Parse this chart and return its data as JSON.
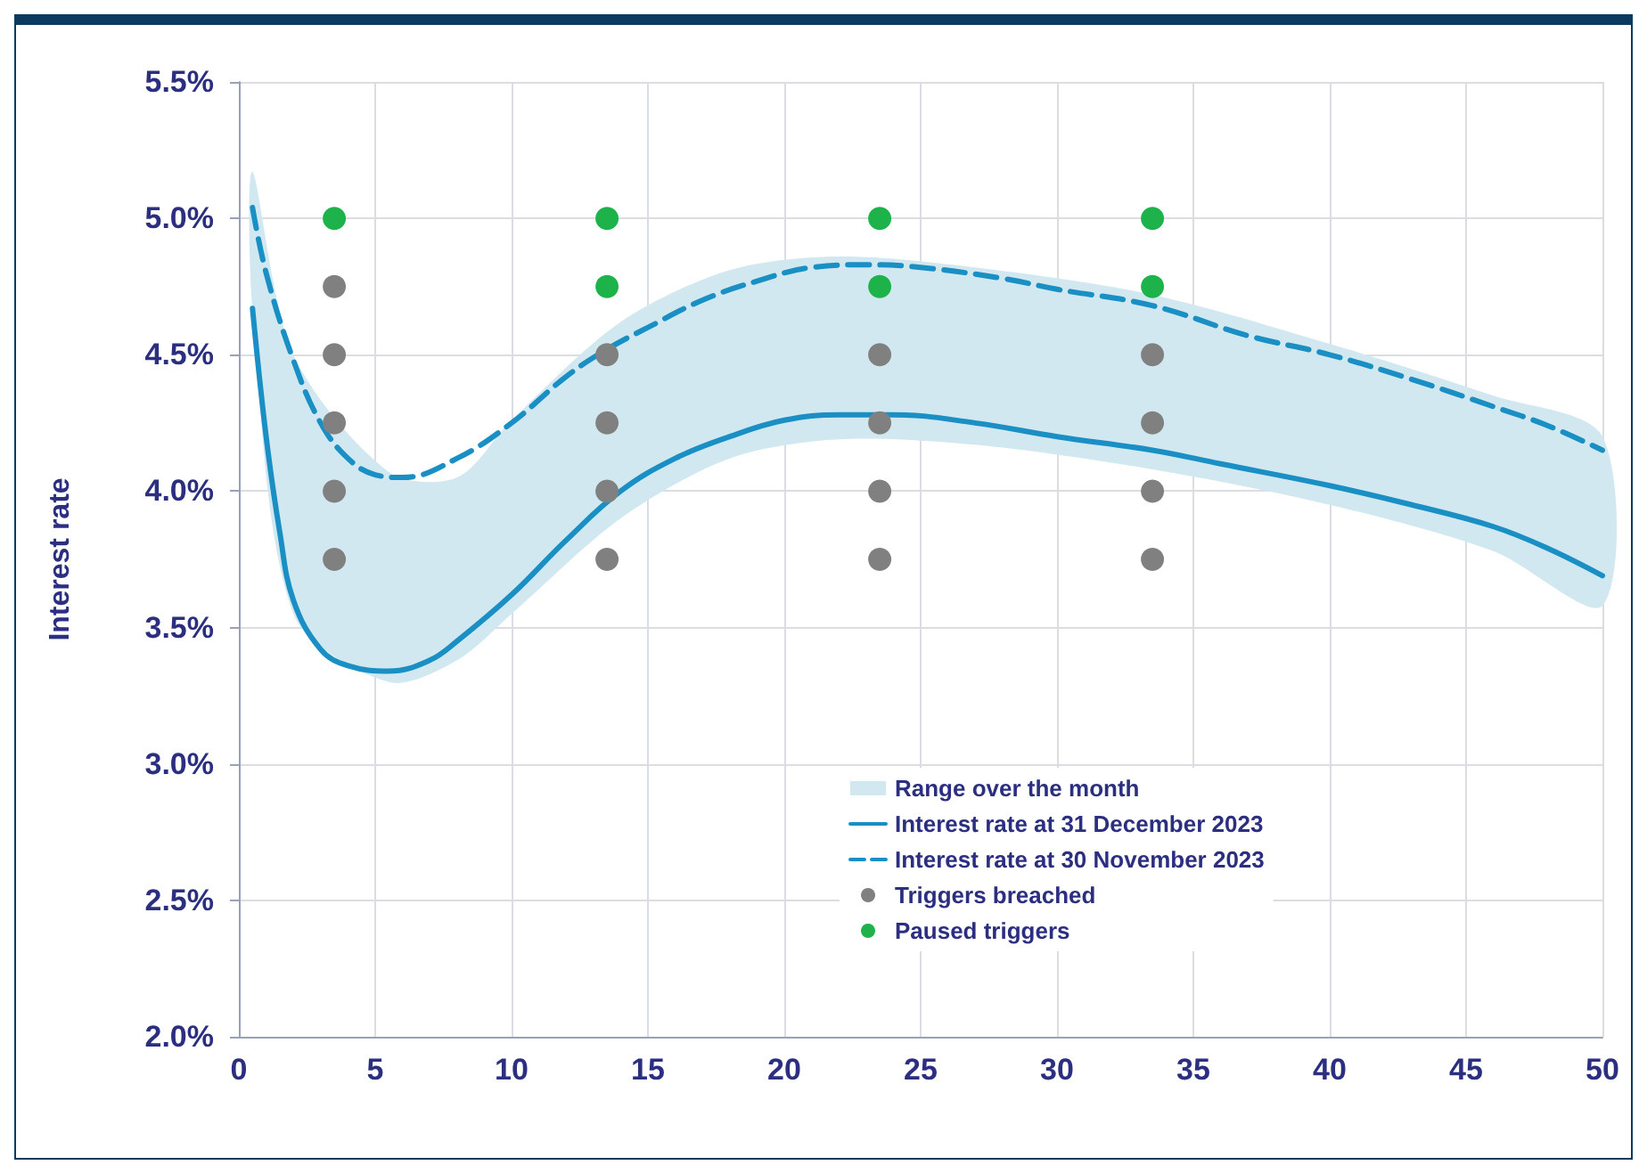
{
  "chart_data": {
    "type": "line",
    "ylabel": "Interest rate",
    "xlim": [
      0,
      50
    ],
    "xticks": [
      0,
      5,
      10,
      15,
      20,
      25,
      30,
      35,
      40,
      45,
      50
    ],
    "ylim": [
      2.0,
      5.5
    ],
    "yticks": [
      {
        "value": 2.0,
        "label": "2.0%"
      },
      {
        "value": 2.5,
        "label": "2.5%"
      },
      {
        "value": 3.0,
        "label": "3.0%"
      },
      {
        "value": 3.5,
        "label": "3.5%"
      },
      {
        "value": 4.0,
        "label": "4.0%"
      },
      {
        "value": 4.5,
        "label": "4.5%"
      },
      {
        "value": 5.0,
        "label": "5.0%"
      },
      {
        "value": 5.5,
        "label": "5.5%"
      }
    ],
    "grid": true,
    "legend": "bottom",
    "series": [
      {
        "type": "line",
        "name": "Range over the month",
        "color": "#d2e8f0",
        "x": [
          0.5,
          2,
          5.5,
          8,
          10,
          14,
          18,
          22,
          27,
          33.5,
          40,
          46,
          50
        ],
        "values": [
          null,
          null,
          null,
          null,
          null,
          null,
          null,
          null,
          null,
          null,
          null,
          null,
          null
        ],
        "lower": [
          4.67,
          3.55,
          3.3,
          3.38,
          3.55,
          3.9,
          4.12,
          4.19,
          4.17,
          4.08,
          3.95,
          3.78,
          3.58
        ],
        "upper": [
          5.17,
          4.5,
          4.07,
          4.05,
          4.26,
          4.62,
          4.81,
          4.86,
          4.82,
          4.72,
          4.54,
          4.35,
          4.2
        ]
      },
      {
        "type": "line",
        "name": "Interest rate at 31 December 2023",
        "color": "#1a8fc4",
        "line_style": "solid",
        "marker": "none",
        "x": [
          0.5,
          1,
          1.5,
          2,
          3,
          4,
          5.5,
          7,
          8,
          10,
          12,
          14,
          16,
          18,
          20,
          22,
          24,
          27,
          30,
          33.5,
          36,
          40,
          43,
          46,
          48,
          50
        ],
        "values": [
          4.67,
          4.2,
          3.85,
          3.6,
          3.42,
          3.36,
          3.34,
          3.38,
          3.45,
          3.62,
          3.82,
          4.0,
          4.12,
          4.2,
          4.26,
          4.28,
          4.28,
          4.25,
          4.2,
          4.15,
          4.1,
          4.02,
          3.95,
          3.87,
          3.79,
          3.69
        ]
      },
      {
        "type": "line",
        "name": "Interest rate at 30 November 2023",
        "color": "#1a8fc4",
        "line_style": "dashed",
        "marker": "none",
        "x": [
          0.5,
          1,
          2,
          3,
          4,
          5,
          6,
          8,
          10,
          12,
          13.5,
          15,
          17,
          19,
          21,
          23,
          25,
          28,
          30,
          33.5,
          37,
          40,
          43,
          46,
          48,
          50
        ],
        "values": [
          5.04,
          4.8,
          4.48,
          4.25,
          4.12,
          4.06,
          4.05,
          4.12,
          4.25,
          4.42,
          4.52,
          4.6,
          4.7,
          4.77,
          4.82,
          4.83,
          4.82,
          4.78,
          4.74,
          4.68,
          4.57,
          4.5,
          4.41,
          4.31,
          4.24,
          4.15
        ]
      },
      {
        "type": "scatter",
        "name": "Triggers breached",
        "color": "#808080",
        "marker": "circle",
        "x": [
          3.5,
          3.5,
          3.5,
          3.5,
          3.5,
          13.5,
          13.5,
          13.5,
          13.5,
          23.5,
          23.5,
          23.5,
          23.5,
          33.5,
          33.5,
          33.5,
          33.5
        ],
        "values": [
          4.75,
          4.5,
          4.25,
          4.0,
          3.75,
          4.5,
          4.25,
          4.0,
          3.75,
          4.5,
          4.25,
          4.0,
          3.75,
          4.5,
          4.25,
          4.0,
          3.75
        ]
      },
      {
        "type": "scatter",
        "name": "Paused triggers",
        "color": "#1db34a",
        "marker": "circle",
        "x": [
          3.5,
          13.5,
          13.5,
          23.5,
          23.5,
          33.5,
          33.5
        ],
        "values": [
          5.0,
          5.0,
          4.75,
          5.0,
          4.75,
          5.0,
          4.75
        ]
      }
    ]
  }
}
